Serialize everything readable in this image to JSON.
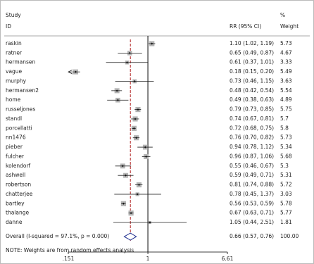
{
  "chart_data": {
    "type": "forest",
    "header": {
      "study": "Study",
      "id": "ID",
      "effect": "RR (95% CI)",
      "pct": "%",
      "weight": "Weight"
    },
    "categories": [
      "raskin",
      "ratner",
      "hermansen",
      "vague",
      "murphy",
      "hermansen2",
      "home",
      "russeljones",
      "standl",
      "porcellatti",
      "nn1476",
      "pieber",
      "fulcher",
      "kolendorf",
      "ashwell",
      "robertson",
      "chatterjee",
      "bartley",
      "thalange",
      "danne"
    ],
    "values": [
      1.1,
      0.65,
      0.61,
      0.18,
      0.73,
      0.48,
      0.49,
      0.79,
      0.74,
      0.72,
      0.76,
      0.94,
      0.96,
      0.55,
      0.59,
      0.81,
      0.78,
      0.56,
      0.67,
      1.05
    ],
    "lower": [
      1.02,
      0.49,
      0.37,
      0.15,
      0.46,
      0.42,
      0.38,
      0.73,
      0.67,
      0.68,
      0.7,
      0.78,
      0.87,
      0.46,
      0.49,
      0.74,
      0.45,
      0.53,
      0.63,
      0.44
    ],
    "upper": [
      1.19,
      0.87,
      1.01,
      0.2,
      1.15,
      0.54,
      0.63,
      0.85,
      0.81,
      0.75,
      0.82,
      1.12,
      1.06,
      0.67,
      0.71,
      0.88,
      1.37,
      0.59,
      0.71,
      2.51
    ],
    "value_labels": [
      "1.10 (1.02, 1.19)",
      "0.65 (0.49, 0.87)",
      "0.61 (0.37, 1.01)",
      "0.18 (0.15, 0.20)",
      "0.73 (0.46, 1.15)",
      "0.48 (0.42, 0.54)",
      "0.49 (0.38, 0.63)",
      "0.79 (0.73, 0.85)",
      "0.74 (0.67, 0.81)",
      "0.72 (0.68, 0.75)",
      "0.76 (0.70, 0.82)",
      "0.94 (0.78, 1.12)",
      "0.96 (0.87, 1.06)",
      "0.55 (0.46, 0.67)",
      "0.59 (0.49, 0.71)",
      "0.81 (0.74, 0.88)",
      "0.78 (0.45, 1.37)",
      "0.56 (0.53, 0.59)",
      "0.67 (0.63, 0.71)",
      "1.05 (0.44, 2.51)"
    ],
    "weights": [
      5.73,
      4.67,
      3.33,
      5.49,
      3.63,
      5.54,
      4.89,
      5.75,
      5.7,
      5.8,
      5.73,
      5.34,
      5.68,
      5.3,
      5.31,
      5.72,
      3.03,
      5.78,
      5.77,
      1.81
    ],
    "overall": {
      "name": "Overall  (I-squared = 97.1%, p = 0.000)",
      "value": 0.66,
      "lower": 0.57,
      "upper": 0.76,
      "value_label": "0.66 (0.57, 0.76)",
      "weight": 100,
      "weight_label": "100.00"
    },
    "note": "NOTE: Weights are from random effects analysis",
    "xlim": [
      0.151,
      6.61
    ],
    "xticks": [
      {
        "value": 0.151,
        "label": ".151"
      },
      1,
      6.61
    ],
    "log_scale": true,
    "reference_line": 1,
    "box_color": "#b4b4b4",
    "overall_line_color": "#b22222",
    "diamond_color": "#1f2f8f"
  }
}
